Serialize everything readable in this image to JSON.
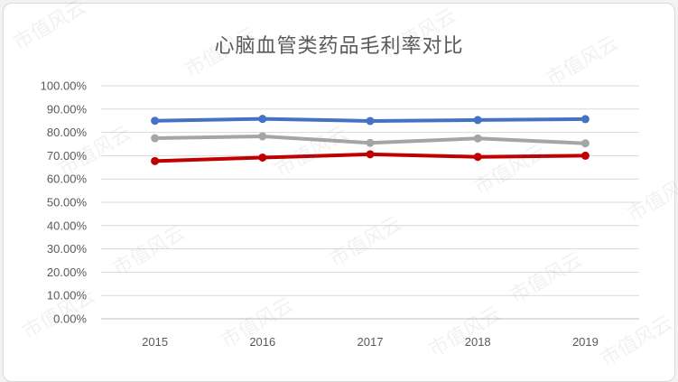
{
  "chart_data": {
    "type": "line",
    "title": "心脑血管类药品毛利率对比",
    "categories": [
      "2015",
      "2016",
      "2017",
      "2018",
      "2019"
    ],
    "ylim": [
      0,
      100
    ],
    "yticks": [
      "0.00%",
      "10.00%",
      "20.00%",
      "30.00%",
      "40.00%",
      "50.00%",
      "60.00%",
      "70.00%",
      "80.00%",
      "90.00%",
      "100.00%"
    ],
    "grid": true,
    "legend": "none",
    "series": [
      {
        "color": "#4472c4",
        "values": [
          85.0,
          85.8,
          84.9,
          85.3,
          85.7
        ]
      },
      {
        "color": "#a5a5a5",
        "values": [
          77.5,
          78.3,
          75.5,
          77.4,
          75.3
        ]
      },
      {
        "color": "#c00000",
        "values": [
          67.7,
          69.2,
          70.6,
          69.5,
          70.0
        ]
      }
    ]
  },
  "watermark": "市值风云"
}
